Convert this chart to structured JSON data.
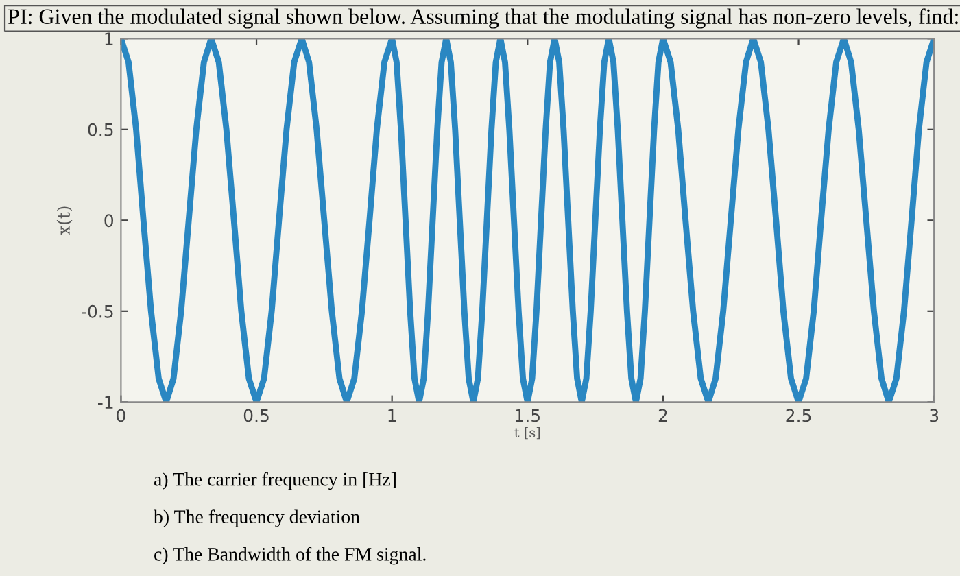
{
  "chart_data": {
    "type": "line",
    "title": "PI: Given the modulated signal shown below. Assuming that the modulating signal has non-zero levels, find:",
    "xlabel": "t [s]",
    "ylabel": "x(t)",
    "x": [
      0,
      0.028,
      0.056,
      0.083,
      0.111,
      0.139,
      0.167,
      0.194,
      0.222,
      0.25,
      0.278,
      0.306,
      0.333,
      0.361,
      0.389,
      0.417,
      0.444,
      0.472,
      0.5,
      0.528,
      0.556,
      0.583,
      0.611,
      0.639,
      0.667,
      0.694,
      0.722,
      0.75,
      0.778,
      0.806,
      0.833,
      0.861,
      0.889,
      0.917,
      0.944,
      0.972,
      1,
      1.017,
      1.033,
      1.05,
      1.067,
      1.083,
      1.1,
      1.117,
      1.133,
      1.15,
      1.167,
      1.183,
      1.2,
      1.217,
      1.233,
      1.25,
      1.267,
      1.283,
      1.3,
      1.317,
      1.333,
      1.35,
      1.367,
      1.383,
      1.4,
      1.417,
      1.433,
      1.45,
      1.467,
      1.483,
      1.5,
      1.517,
      1.533,
      1.55,
      1.567,
      1.583,
      1.6,
      1.617,
      1.633,
      1.65,
      1.667,
      1.683,
      1.7,
      1.717,
      1.733,
      1.75,
      1.767,
      1.783,
      1.8,
      1.817,
      1.833,
      1.85,
      1.867,
      1.883,
      1.9,
      1.917,
      1.933,
      1.95,
      1.967,
      1.983,
      2,
      2.028,
      2.056,
      2.083,
      2.111,
      2.139,
      2.167,
      2.194,
      2.222,
      2.25,
      2.278,
      2.306,
      2.333,
      2.361,
      2.389,
      2.417,
      2.444,
      2.472,
      2.5,
      2.528,
      2.556,
      2.583,
      2.611,
      2.639,
      2.667,
      2.694,
      2.722,
      2.75,
      2.778,
      2.806,
      2.833,
      2.861,
      2.889,
      2.917,
      2.944,
      2.972,
      3
    ],
    "series": [
      {
        "color": "#2a87c2",
        "values": [
          1,
          0.87,
          0.5,
          0,
          -0.5,
          -0.87,
          -1,
          -0.87,
          -0.5,
          0,
          0.5,
          0.87,
          1,
          0.87,
          0.5,
          0,
          -0.5,
          -0.87,
          -1,
          -0.87,
          -0.5,
          0,
          0.5,
          0.87,
          1,
          0.87,
          0.5,
          0,
          -0.5,
          -0.87,
          -1,
          -0.87,
          -0.5,
          0,
          0.5,
          0.87,
          1,
          0.87,
          0.5,
          0,
          -0.5,
          -0.87,
          -1,
          -0.87,
          -0.5,
          0,
          0.5,
          0.87,
          1,
          0.87,
          0.5,
          0,
          -0.5,
          -0.87,
          -1,
          -0.87,
          -0.5,
          0,
          0.5,
          0.87,
          1,
          0.87,
          0.5,
          0,
          -0.5,
          -0.87,
          -1,
          -0.87,
          -0.5,
          0,
          0.5,
          0.87,
          1,
          0.87,
          0.5,
          0,
          -0.5,
          -0.87,
          -1,
          -0.87,
          -0.5,
          0,
          0.5,
          0.87,
          1,
          0.87,
          0.5,
          0,
          -0.5,
          -0.87,
          -1,
          -0.87,
          -0.5,
          0,
          0.5,
          0.87,
          1,
          0.87,
          0.5,
          0,
          -0.5,
          -0.87,
          -1,
          -0.87,
          -0.5,
          0,
          0.5,
          0.87,
          1,
          0.87,
          0.5,
          0,
          -0.5,
          -0.87,
          -1,
          -0.87,
          -0.5,
          0,
          0.5,
          0.87,
          1,
          0.87,
          0.5,
          0,
          -0.5,
          -0.87,
          -1,
          -0.87,
          -0.5,
          0,
          0.5,
          0.87,
          1
        ]
      }
    ],
    "xlim": [
      0,
      3
    ],
    "xticks": [
      0,
      0.5,
      1,
      1.5,
      2,
      2.5,
      3
    ],
    "ylim": [
      -1,
      1
    ],
    "yticks": [
      -1,
      -0.5,
      0,
      0.5,
      1
    ],
    "grid": false,
    "marker": "none",
    "line_style": "solid",
    "annotations": [
      "a) The carrier frequency in [Hz]",
      "b) The frequency deviation",
      "c) The Bandwidth of the FM signal."
    ]
  }
}
